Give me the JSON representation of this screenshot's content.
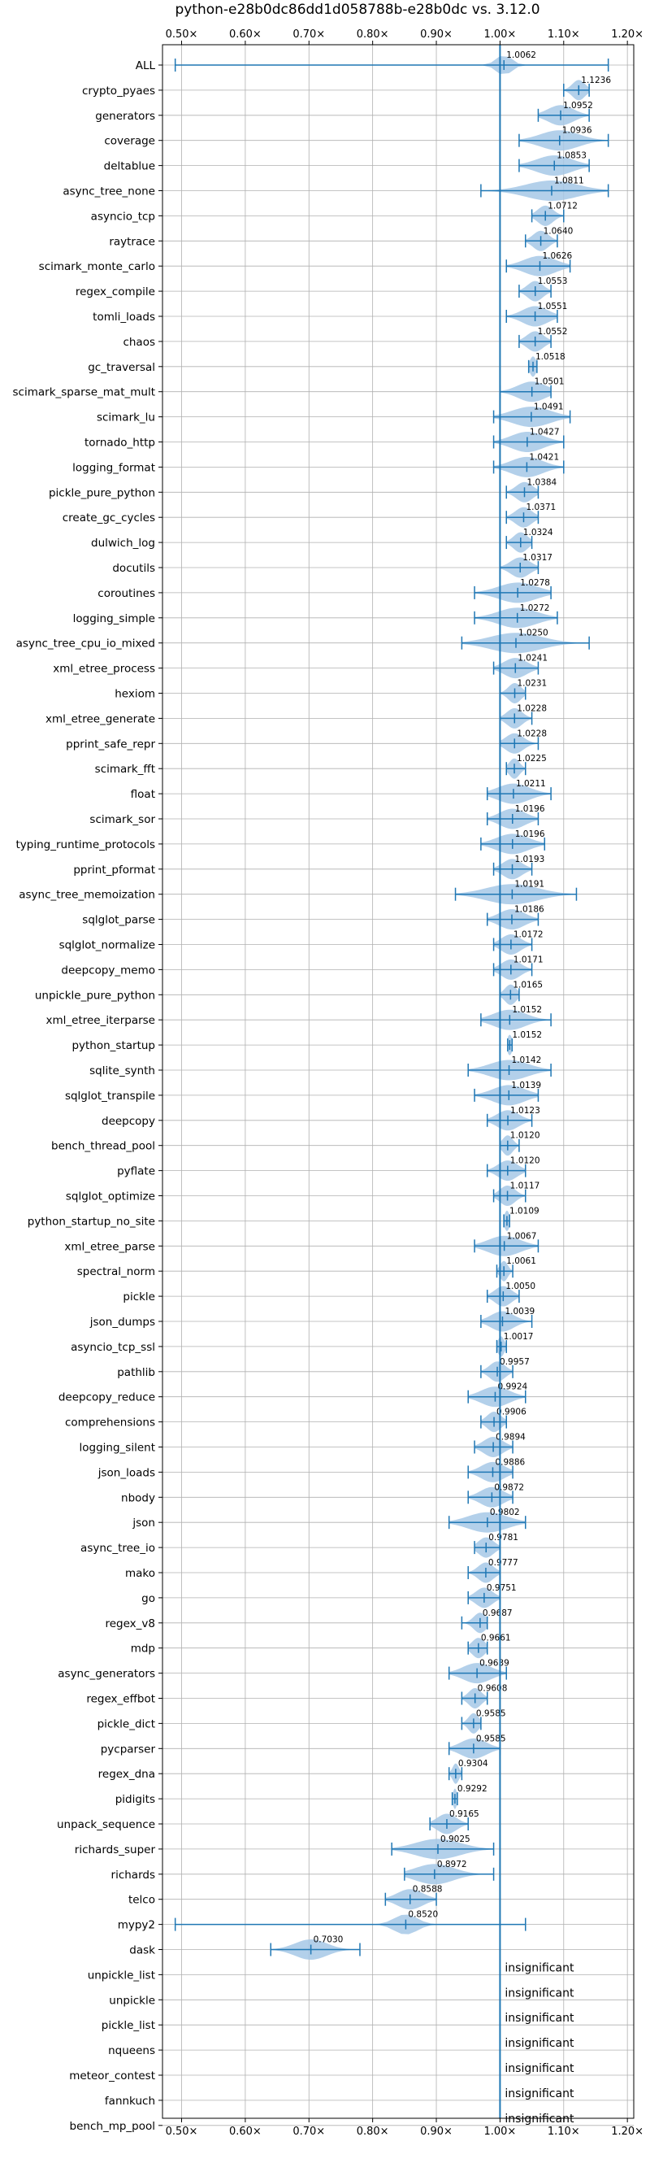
{
  "chart_data": {
    "type": "violin",
    "title": "python-e28b0dc86dd1d058788b-e28b0dc vs. 3.12.0",
    "xlabel": "",
    "ylabel": "",
    "xlim": [
      0.47,
      1.21
    ],
    "reference_line": 1.0,
    "grid": true,
    "color": "#1f77b4",
    "fill_color": "#a6c8e6",
    "x_ticks": [
      {
        "value": 0.5,
        "label": "0.50×"
      },
      {
        "value": 0.6,
        "label": "0.60×"
      },
      {
        "value": 0.7,
        "label": "0.70×"
      },
      {
        "value": 0.8,
        "label": "0.80×"
      },
      {
        "value": 0.9,
        "label": "0.90×"
      },
      {
        "value": 1.0,
        "label": "1.00×"
      },
      {
        "value": 1.1,
        "label": "1.10×"
      },
      {
        "value": 1.2,
        "label": "1.20×"
      }
    ],
    "categories": [
      {
        "name": "ALL",
        "value": 1.0062,
        "label": "1.0062",
        "min": 0.49,
        "max": 1.17,
        "spread": 0.012
      },
      {
        "name": "crypto_pyaes",
        "value": 1.1236,
        "label": "1.1236",
        "min": 1.1,
        "max": 1.14,
        "spread": 0.01
      },
      {
        "name": "generators",
        "value": 1.0952,
        "label": "1.0952",
        "min": 1.06,
        "max": 1.14,
        "spread": 0.02
      },
      {
        "name": "coverage",
        "value": 1.0936,
        "label": "1.0936",
        "min": 1.03,
        "max": 1.17,
        "spread": 0.03
      },
      {
        "name": "deltablue",
        "value": 1.0853,
        "label": "1.0853",
        "min": 1.03,
        "max": 1.14,
        "spread": 0.028
      },
      {
        "name": "async_tree_none",
        "value": 1.0811,
        "label": "1.0811",
        "min": 0.97,
        "max": 1.17,
        "spread": 0.04
      },
      {
        "name": "asyncio_tcp",
        "value": 1.0712,
        "label": "1.0712",
        "min": 1.05,
        "max": 1.1,
        "spread": 0.012
      },
      {
        "name": "raytrace",
        "value": 1.064,
        "label": "1.0640",
        "min": 1.04,
        "max": 1.09,
        "spread": 0.012
      },
      {
        "name": "scimark_monte_carlo",
        "value": 1.0626,
        "label": "1.0626",
        "min": 1.01,
        "max": 1.11,
        "spread": 0.025
      },
      {
        "name": "regex_compile",
        "value": 1.0553,
        "label": "1.0553",
        "min": 1.03,
        "max": 1.08,
        "spread": 0.012
      },
      {
        "name": "tomli_loads",
        "value": 1.0551,
        "label": "1.0551",
        "min": 1.01,
        "max": 1.09,
        "spread": 0.02
      },
      {
        "name": "chaos",
        "value": 1.0552,
        "label": "1.0552",
        "min": 1.03,
        "max": 1.08,
        "spread": 0.013
      },
      {
        "name": "gc_traversal",
        "value": 1.0518,
        "label": "1.0518",
        "min": 1.045,
        "max": 1.058,
        "spread": 0.005
      },
      {
        "name": "scimark_sparse_mat_mult",
        "value": 1.0501,
        "label": "1.0501",
        "min": 1.0,
        "max": 1.08,
        "spread": 0.022
      },
      {
        "name": "scimark_lu",
        "value": 1.0491,
        "label": "1.0491",
        "min": 0.99,
        "max": 1.11,
        "spread": 0.03
      },
      {
        "name": "tornado_http",
        "value": 1.0427,
        "label": "1.0427",
        "min": 0.99,
        "max": 1.1,
        "spread": 0.025
      },
      {
        "name": "logging_format",
        "value": 1.0421,
        "label": "1.0421",
        "min": 0.99,
        "max": 1.1,
        "spread": 0.025
      },
      {
        "name": "pickle_pure_python",
        "value": 1.0384,
        "label": "1.0384",
        "min": 1.01,
        "max": 1.06,
        "spread": 0.013
      },
      {
        "name": "create_gc_cycles",
        "value": 1.0371,
        "label": "1.0371",
        "min": 1.01,
        "max": 1.06,
        "spread": 0.013
      },
      {
        "name": "dulwich_log",
        "value": 1.0324,
        "label": "1.0324",
        "min": 1.01,
        "max": 1.05,
        "spread": 0.011
      },
      {
        "name": "docutils",
        "value": 1.0317,
        "label": "1.0317",
        "min": 1.0,
        "max": 1.06,
        "spread": 0.015
      },
      {
        "name": "coroutines",
        "value": 1.0278,
        "label": "1.0278",
        "min": 0.96,
        "max": 1.08,
        "spread": 0.03
      },
      {
        "name": "logging_simple",
        "value": 1.0272,
        "label": "1.0272",
        "min": 0.96,
        "max": 1.09,
        "spread": 0.03
      },
      {
        "name": "async_tree_cpu_io_mixed",
        "value": 1.025,
        "label": "1.0250",
        "min": 0.94,
        "max": 1.14,
        "spread": 0.04
      },
      {
        "name": "xml_etree_process",
        "value": 1.0241,
        "label": "1.0241",
        "min": 0.99,
        "max": 1.06,
        "spread": 0.018
      },
      {
        "name": "hexiom",
        "value": 1.0231,
        "label": "1.0231",
        "min": 1.0,
        "max": 1.04,
        "spread": 0.01
      },
      {
        "name": "xml_etree_generate",
        "value": 1.0228,
        "label": "1.0228",
        "min": 1.0,
        "max": 1.05,
        "spread": 0.012
      },
      {
        "name": "pprint_safe_repr",
        "value": 1.0228,
        "label": "1.0228",
        "min": 1.0,
        "max": 1.06,
        "spread": 0.014
      },
      {
        "name": "scimark_fft",
        "value": 1.0225,
        "label": "1.0225",
        "min": 1.01,
        "max": 1.04,
        "spread": 0.008
      },
      {
        "name": "float",
        "value": 1.0211,
        "label": "1.0211",
        "min": 0.98,
        "max": 1.08,
        "spread": 0.025
      },
      {
        "name": "scimark_sor",
        "value": 1.0196,
        "label": "1.0196",
        "min": 0.98,
        "max": 1.06,
        "spread": 0.02
      },
      {
        "name": "typing_runtime_protocols",
        "value": 1.0196,
        "label": "1.0196",
        "min": 0.97,
        "max": 1.07,
        "spread": 0.025
      },
      {
        "name": "pprint_pformat",
        "value": 1.0193,
        "label": "1.0193",
        "min": 0.99,
        "max": 1.05,
        "spread": 0.015
      },
      {
        "name": "async_tree_memoization",
        "value": 1.0191,
        "label": "1.0191",
        "min": 0.93,
        "max": 1.12,
        "spread": 0.04
      },
      {
        "name": "sqlglot_parse",
        "value": 1.0186,
        "label": "1.0186",
        "min": 0.98,
        "max": 1.06,
        "spread": 0.02
      },
      {
        "name": "sqlglot_normalize",
        "value": 1.0172,
        "label": "1.0172",
        "min": 0.99,
        "max": 1.05,
        "spread": 0.015
      },
      {
        "name": "deepcopy_memo",
        "value": 1.0171,
        "label": "1.0171",
        "min": 0.99,
        "max": 1.05,
        "spread": 0.015
      },
      {
        "name": "unpickle_pure_python",
        "value": 1.0165,
        "label": "1.0165",
        "min": 1.0,
        "max": 1.03,
        "spread": 0.009
      },
      {
        "name": "xml_etree_iterparse",
        "value": 1.0152,
        "label": "1.0152",
        "min": 0.97,
        "max": 1.08,
        "spread": 0.025
      },
      {
        "name": "python_startup",
        "value": 1.0152,
        "label": "1.0152",
        "min": 1.012,
        "max": 1.019,
        "spread": 0.004
      },
      {
        "name": "sqlite_synth",
        "value": 1.0142,
        "label": "1.0142",
        "min": 0.95,
        "max": 1.08,
        "spread": 0.03
      },
      {
        "name": "sqlglot_transpile",
        "value": 1.0139,
        "label": "1.0139",
        "min": 0.96,
        "max": 1.06,
        "spread": 0.025
      },
      {
        "name": "deepcopy",
        "value": 1.0123,
        "label": "1.0123",
        "min": 0.98,
        "max": 1.05,
        "spread": 0.017
      },
      {
        "name": "bench_thread_pool",
        "value": 1.012,
        "label": "1.0120",
        "min": 1.0,
        "max": 1.03,
        "spread": 0.008
      },
      {
        "name": "pyflate",
        "value": 1.012,
        "label": "1.0120",
        "min": 0.98,
        "max": 1.04,
        "spread": 0.015
      },
      {
        "name": "sqlglot_optimize",
        "value": 1.0117,
        "label": "1.0117",
        "min": 0.99,
        "max": 1.04,
        "spread": 0.012
      },
      {
        "name": "python_startup_no_site",
        "value": 1.0109,
        "label": "1.0109",
        "min": 1.006,
        "max": 1.015,
        "spread": 0.004
      },
      {
        "name": "xml_etree_parse",
        "value": 1.0067,
        "label": "1.0067",
        "min": 0.96,
        "max": 1.06,
        "spread": 0.025
      },
      {
        "name": "spectral_norm",
        "value": 1.0061,
        "label": "1.0061",
        "min": 0.995,
        "max": 1.02,
        "spread": 0.006
      },
      {
        "name": "pickle",
        "value": 1.005,
        "label": "1.0050",
        "min": 0.98,
        "max": 1.03,
        "spread": 0.013
      },
      {
        "name": "json_dumps",
        "value": 1.0039,
        "label": "1.0039",
        "min": 0.97,
        "max": 1.05,
        "spread": 0.018
      },
      {
        "name": "asyncio_tcp_ssl",
        "value": 1.0017,
        "label": "1.0017",
        "min": 0.995,
        "max": 1.01,
        "spread": 0.005
      },
      {
        "name": "pathlib",
        "value": 0.9957,
        "label": "0.9957",
        "min": 0.97,
        "max": 1.02,
        "spread": 0.012
      },
      {
        "name": "deepcopy_reduce",
        "value": 0.9924,
        "label": "0.9924",
        "min": 0.95,
        "max": 1.04,
        "spread": 0.022
      },
      {
        "name": "comprehensions",
        "value": 0.9906,
        "label": "0.9906",
        "min": 0.97,
        "max": 1.01,
        "spread": 0.011
      },
      {
        "name": "logging_silent",
        "value": 0.9894,
        "label": "0.9894",
        "min": 0.96,
        "max": 1.02,
        "spread": 0.015
      },
      {
        "name": "json_loads",
        "value": 0.9886,
        "label": "0.9886",
        "min": 0.95,
        "max": 1.02,
        "spread": 0.018
      },
      {
        "name": "nbody",
        "value": 0.9872,
        "label": "0.9872",
        "min": 0.95,
        "max": 1.02,
        "spread": 0.018
      },
      {
        "name": "json",
        "value": 0.9802,
        "label": "0.9802",
        "min": 0.92,
        "max": 1.04,
        "spread": 0.03
      },
      {
        "name": "async_tree_io",
        "value": 0.9781,
        "label": "0.9781",
        "min": 0.96,
        "max": 1.0,
        "spread": 0.012
      },
      {
        "name": "mako",
        "value": 0.9777,
        "label": "0.9777",
        "min": 0.95,
        "max": 1.0,
        "spread": 0.012
      },
      {
        "name": "go",
        "value": 0.9751,
        "label": "0.9751",
        "min": 0.95,
        "max": 1.0,
        "spread": 0.013
      },
      {
        "name": "regex_v8",
        "value": 0.9687,
        "label": "0.9687",
        "min": 0.94,
        "max": 0.98,
        "spread": 0.01
      },
      {
        "name": "mdp",
        "value": 0.9661,
        "label": "0.9661",
        "min": 0.95,
        "max": 0.98,
        "spread": 0.01
      },
      {
        "name": "async_generators",
        "value": 0.9639,
        "label": "0.9639",
        "min": 0.92,
        "max": 1.01,
        "spread": 0.022
      },
      {
        "name": "regex_effbot",
        "value": 0.9608,
        "label": "0.9608",
        "min": 0.94,
        "max": 0.98,
        "spread": 0.01
      },
      {
        "name": "pickle_dict",
        "value": 0.9585,
        "label": "0.9585",
        "min": 0.94,
        "max": 0.97,
        "spread": 0.008
      },
      {
        "name": "pycparser",
        "value": 0.9585,
        "label": "0.9585",
        "min": 0.92,
        "max": 1.0,
        "spread": 0.02
      },
      {
        "name": "regex_dna",
        "value": 0.9304,
        "label": "0.9304",
        "min": 0.92,
        "max": 0.94,
        "spread": 0.005
      },
      {
        "name": "pidigits",
        "value": 0.9292,
        "label": "0.9292",
        "min": 0.925,
        "max": 0.933,
        "spread": 0.003
      },
      {
        "name": "unpack_sequence",
        "value": 0.9165,
        "label": "0.9165",
        "min": 0.89,
        "max": 0.95,
        "spread": 0.015
      },
      {
        "name": "richards_super",
        "value": 0.9025,
        "label": "0.9025",
        "min": 0.83,
        "max": 0.99,
        "spread": 0.035
      },
      {
        "name": "richards",
        "value": 0.8972,
        "label": "0.8972",
        "min": 0.85,
        "max": 0.99,
        "spread": 0.03
      },
      {
        "name": "telco",
        "value": 0.8588,
        "label": "0.8588",
        "min": 0.82,
        "max": 0.9,
        "spread": 0.02
      },
      {
        "name": "mypy2",
        "value": 0.852,
        "label": "0.8520",
        "min": 0.49,
        "max": 1.04,
        "spread": 0.018
      },
      {
        "name": "dask",
        "value": 0.703,
        "label": "0.7030",
        "min": 0.64,
        "max": 0.78,
        "spread": 0.025
      },
      {
        "name": "unpickle_list",
        "insignificant": true,
        "label": "insignificant"
      },
      {
        "name": "unpickle",
        "insignificant": true,
        "label": "insignificant"
      },
      {
        "name": "pickle_list",
        "insignificant": true,
        "label": "insignificant"
      },
      {
        "name": "nqueens",
        "insignificant": true,
        "label": "insignificant"
      },
      {
        "name": "meteor_contest",
        "insignificant": true,
        "label": "insignificant"
      },
      {
        "name": "fannkuch",
        "insignificant": true,
        "label": "insignificant"
      },
      {
        "name": "bench_mp_pool",
        "insignificant": true,
        "label": "insignificant"
      }
    ]
  }
}
